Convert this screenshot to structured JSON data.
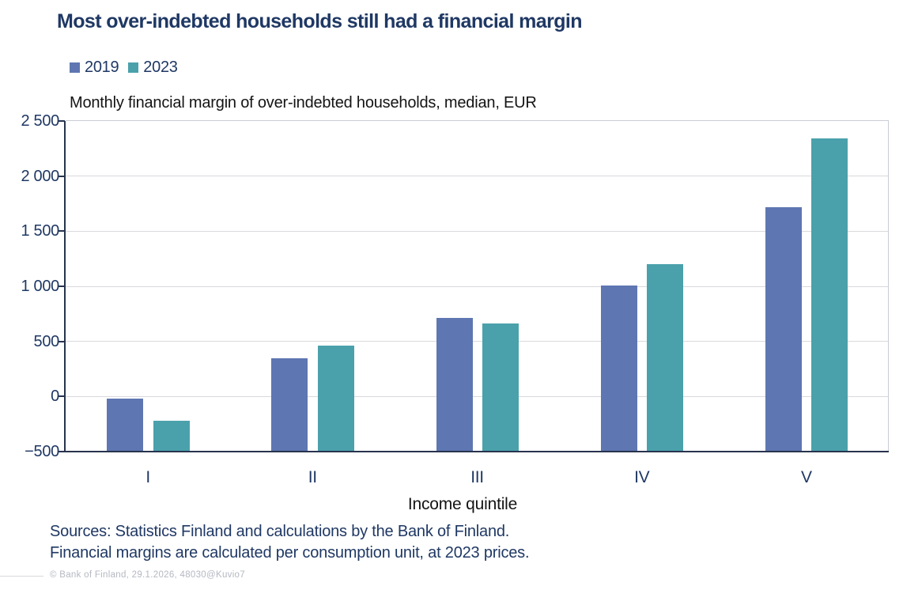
{
  "header": {
    "title": "Most over-indebted households still had a financial margin",
    "subtitle": "Monthly financial margin of over-indebted households, median, EUR"
  },
  "legend": {
    "items": [
      {
        "label": "2019",
        "color": "#5E76B1"
      },
      {
        "label": "2023",
        "color": "#4AA1AB"
      }
    ]
  },
  "chart_data": {
    "type": "bar",
    "title": "Most over-indebted households still had a financial margin",
    "subtitle": "Monthly financial margin of over-indebted households, median, EUR",
    "categories": [
      "I",
      "II",
      "III",
      "IV",
      "V"
    ],
    "series": [
      {
        "name": "2019",
        "color": "#5E76B1",
        "values": [
          -20,
          350,
          710,
          1010,
          1720
        ]
      },
      {
        "name": "2023",
        "color": "#4AA1AB",
        "values": [
          -220,
          460,
          660,
          1200,
          2340
        ]
      }
    ],
    "xlabel": "Income quintile",
    "ylabel": "",
    "ylim": [
      -500,
      2500
    ],
    "ytick_step": 500,
    "ytick_labels": [
      "2 500",
      "2 000",
      "1 500",
      "1 000",
      "500",
      "0",
      "−500"
    ],
    "grid": true,
    "legend_position": "top-left",
    "bars_baseline": -500
  },
  "footer": {
    "source_line1": "Sources: Statistics Finland and calculations by the Bank of Finland.",
    "source_line2": "Financial margins are calculated per consumption unit, at 2023 prices.",
    "copyright": "© Bank of Finland, 29.1.2026, 48030@Kuvio7"
  },
  "colors": {
    "title_text": "#1F3864",
    "body_text": "#141414",
    "axis_line": "#28334D",
    "gridline": "#D9D9DE",
    "plot_border": "#C9CCD6",
    "footer_text": "#B5B8C2",
    "series_2019": "#5E76B1",
    "series_2023": "#4AA1AB"
  }
}
